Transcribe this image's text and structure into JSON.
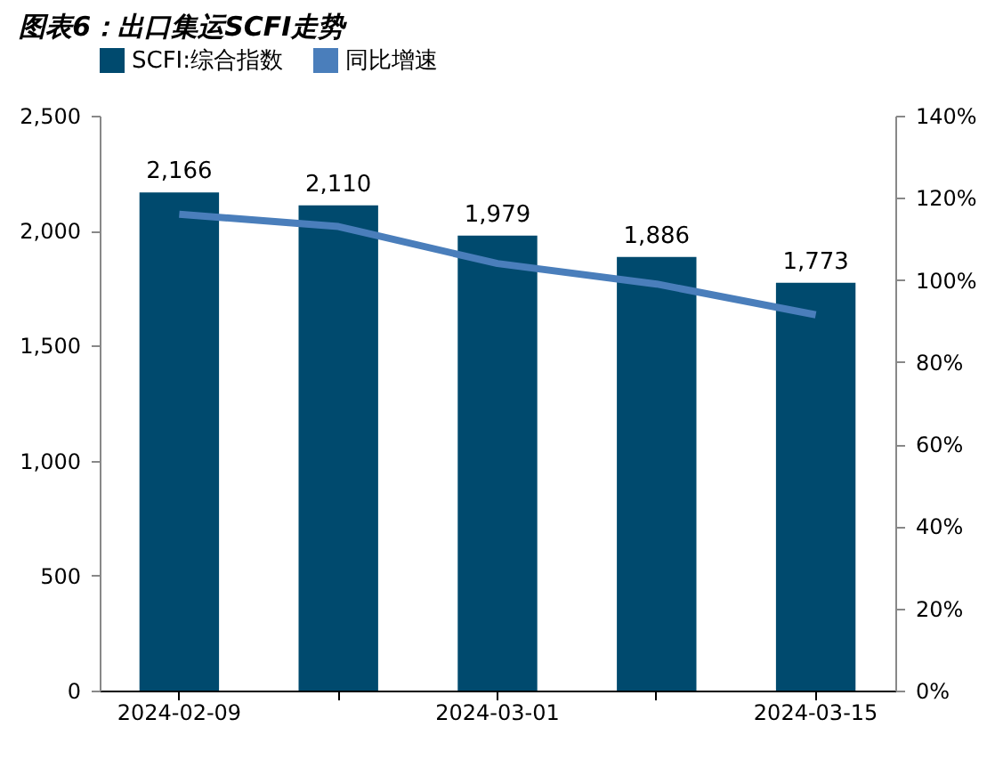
{
  "chart_data": {
    "type": "bar",
    "title": "图表6：出口集运SCFI走势",
    "categories": [
      "2024-02-09",
      null,
      "2024-03-01",
      null,
      "2024-03-15"
    ],
    "series": [
      {
        "name": "SCFI:综合指数",
        "color": "#004a6e",
        "values": [
          2166,
          2110,
          1979,
          1886,
          1773
        ],
        "value_labels": [
          "2,166",
          "2,110",
          "1,979",
          "1,886",
          "1,773"
        ]
      },
      {
        "name": "同比增速",
        "type": "line",
        "axis": "y2",
        "color": "#4a7ebb",
        "values": [
          116,
          113,
          104,
          99,
          91.5
        ]
      }
    ],
    "ylim": [
      0,
      2500
    ],
    "yticks": [
      0,
      500,
      {
        "value": 1000,
        "label": "1,000"
      },
      {
        "value": 1500,
        "label": "1,500"
      },
      {
        "value": 2000,
        "label": "2,000"
      },
      {
        "value": 2500,
        "label": "2,500"
      }
    ],
    "y2lim": [
      0,
      140
    ],
    "y2ticks": [
      {
        "value": 0,
        "label": "0%"
      },
      {
        "value": 20,
        "label": "20%"
      },
      {
        "value": 40,
        "label": "40%"
      },
      {
        "value": 60,
        "label": "60%"
      },
      {
        "value": 80,
        "label": "80%"
      },
      {
        "value": 100,
        "label": "100%"
      },
      {
        "value": 120,
        "label": "120%"
      },
      {
        "value": 140,
        "label": "140%"
      }
    ],
    "legend": "top",
    "line_style": "solid",
    "marker": "none"
  }
}
